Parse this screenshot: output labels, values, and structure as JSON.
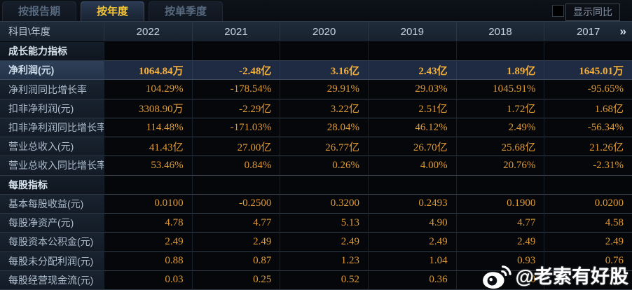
{
  "tabs": [
    {
      "label": "按报告期",
      "active": false
    },
    {
      "label": "按年度",
      "active": true
    },
    {
      "label": "按单季度",
      "active": false
    }
  ],
  "controls": {
    "show_yoy_label": "显示同比",
    "checkbox_checked": false
  },
  "table": {
    "corner_label": "科目\\年度",
    "years": [
      "2022",
      "2021",
      "2020",
      "2019",
      "2018",
      "2017"
    ],
    "more_icon": "»",
    "rows": [
      {
        "type": "section",
        "label": "成长能力指标"
      },
      {
        "type": "data",
        "highlight": true,
        "label": "净利润(元)",
        "values": [
          "1064.84万",
          "-2.48亿",
          "3.16亿",
          "2.43亿",
          "1.89亿",
          "1645.01万"
        ]
      },
      {
        "type": "data",
        "label": "净利润同比增长率",
        "values": [
          "104.29%",
          "-178.54%",
          "29.91%",
          "29.03%",
          "1045.91%",
          "-95.65%"
        ]
      },
      {
        "type": "data",
        "label": "扣非净利润(元)",
        "values": [
          "3308.90万",
          "-2.29亿",
          "3.22亿",
          "2.51亿",
          "1.72亿",
          "1.68亿"
        ]
      },
      {
        "type": "data",
        "label": "扣非净利润同比增长率",
        "values": [
          "114.48%",
          "-171.03%",
          "28.04%",
          "46.12%",
          "2.49%",
          "-56.34%"
        ]
      },
      {
        "type": "data",
        "label": "营业总收入(元)",
        "values": [
          "41.43亿",
          "27.00亿",
          "26.77亿",
          "26.70亿",
          "25.68亿",
          "21.26亿"
        ]
      },
      {
        "type": "data",
        "label": "营业总收入同比增长率",
        "values": [
          "53.46%",
          "0.84%",
          "0.26%",
          "4.00%",
          "20.76%",
          "-2.31%"
        ]
      },
      {
        "type": "section",
        "label": "每股指标"
      },
      {
        "type": "data",
        "label": "基本每股收益(元)",
        "values": [
          "0.0100",
          "-0.2500",
          "0.3200",
          "0.2493",
          "0.1900",
          "0.0200"
        ]
      },
      {
        "type": "data",
        "label": "每股净资产(元)",
        "values": [
          "4.78",
          "4.77",
          "5.13",
          "4.90",
          "4.77",
          "4.58"
        ]
      },
      {
        "type": "data",
        "label": "每股资本公积金(元)",
        "values": [
          "2.49",
          "2.49",
          "2.49",
          "2.49",
          "2.49",
          "2.49"
        ]
      },
      {
        "type": "data",
        "label": "每股未分配利润(元)",
        "values": [
          "0.88",
          "0.87",
          "1.23",
          "1.04",
          "0.93",
          "0.76"
        ]
      },
      {
        "type": "data",
        "label": "每股经营现金流(元)",
        "values": [
          "0.03",
          "0.25",
          "0.52",
          "0.36",
          "0",
          ""
        ]
      }
    ]
  },
  "watermark": {
    "text": "@老索有好股",
    "icon": "weibo-icon"
  },
  "colors": {
    "value_text": "#e09a35",
    "highlight_value_text": "#f4af3a",
    "active_tab_text": "#f8c834",
    "label_text": "#aebdcd",
    "header_bg": "#1a2532",
    "highlight_row_bg": "#1e2b42",
    "watermark_text": "#ffffff"
  }
}
